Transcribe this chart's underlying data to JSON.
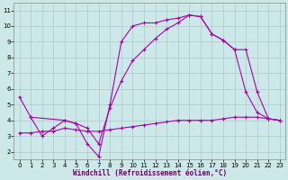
{
  "xlabel": "Windchill (Refroidissement éolien,°C)",
  "bg_color": "#cce8e8",
  "grid_color": "#aacccc",
  "line_color": "#aa00aa",
  "xlim": [
    -0.5,
    23.5
  ],
  "ylim": [
    1.5,
    11.5
  ],
  "xticks": [
    0,
    1,
    2,
    3,
    4,
    5,
    6,
    7,
    8,
    9,
    10,
    11,
    12,
    13,
    14,
    15,
    16,
    17,
    18,
    19,
    20,
    21,
    22,
    23
  ],
  "yticks": [
    2,
    3,
    4,
    5,
    6,
    7,
    8,
    9,
    10,
    11
  ],
  "line1_x": [
    0,
    1,
    2,
    3,
    4,
    5,
    6,
    7,
    8,
    9,
    10,
    11,
    12,
    13,
    14,
    15,
    16,
    17,
    18,
    19,
    20,
    21,
    22,
    23
  ],
  "line1_y": [
    5.5,
    4.2,
    3.0,
    3.5,
    4.0,
    3.8,
    2.5,
    1.7,
    5.0,
    9.0,
    10.0,
    10.2,
    10.2,
    10.4,
    10.5,
    10.7,
    10.6,
    9.5,
    9.1,
    8.5,
    5.8,
    4.5,
    4.1,
    4.0
  ],
  "line2_x": [
    1,
    4,
    5,
    6,
    7,
    8,
    9,
    10,
    11,
    12,
    13,
    14,
    15,
    16,
    17,
    18,
    19,
    20,
    21,
    22,
    23
  ],
  "line2_y": [
    4.2,
    4.0,
    3.8,
    3.5,
    2.5,
    4.8,
    6.5,
    7.8,
    8.5,
    9.2,
    9.8,
    10.2,
    10.7,
    10.6,
    9.5,
    9.1,
    8.5,
    8.5,
    5.8,
    4.1,
    4.0
  ],
  "line3_x": [
    0,
    1,
    2,
    3,
    4,
    5,
    6,
    7,
    8,
    9,
    10,
    11,
    12,
    13,
    14,
    15,
    16,
    17,
    18,
    19,
    20,
    21,
    22,
    23
  ],
  "line3_y": [
    3.2,
    3.2,
    3.3,
    3.3,
    3.5,
    3.4,
    3.3,
    3.3,
    3.4,
    3.5,
    3.6,
    3.7,
    3.8,
    3.9,
    4.0,
    4.0,
    4.0,
    4.0,
    4.1,
    4.2,
    4.2,
    4.2,
    4.1,
    4.0
  ],
  "xlabel_color": "#660066",
  "xlabel_fontsize": 5.5,
  "tick_fontsize": 5,
  "xlabel_fontweight": "bold"
}
